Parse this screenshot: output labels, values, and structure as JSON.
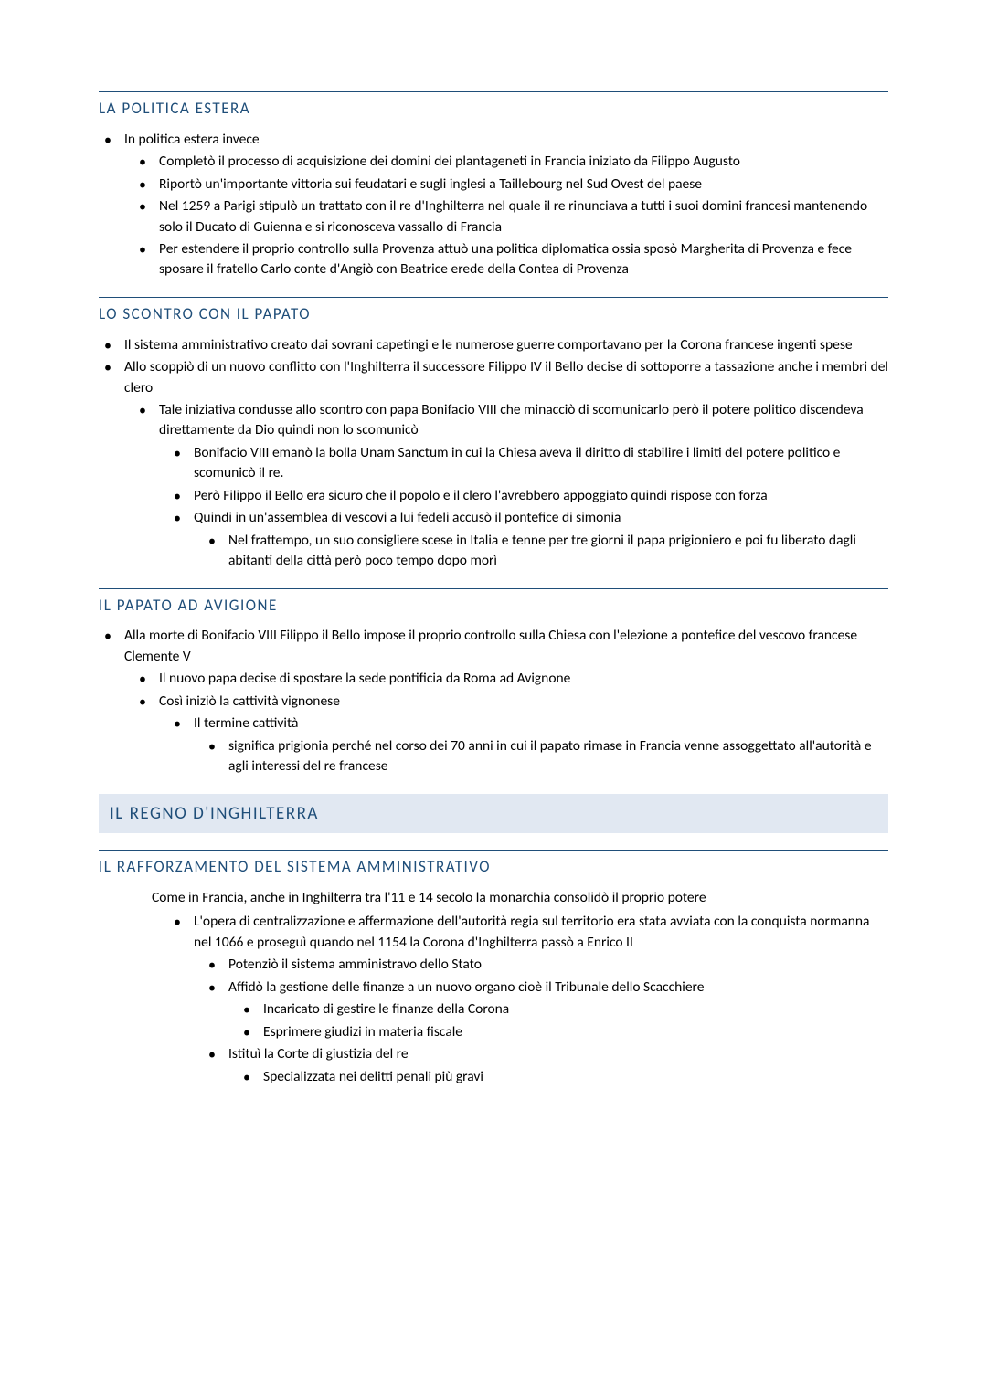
{
  "colors": {
    "heading": "#1f4e79",
    "rule": "#1f4e79",
    "main_bar_bg": "#e1e8f2",
    "text": "#000000",
    "background": "#ffffff"
  },
  "typography": {
    "body_font": "Calibri",
    "body_size_pt": 11,
    "heading_size_pt": 13,
    "main_heading_size_pt": 14,
    "heading_letter_spacing": 1.5
  },
  "sections": [
    {
      "key": "s1",
      "heading": "LA POLITICA ESTERA",
      "items": [
        {
          "key": "s1i0",
          "level": 0,
          "text": "In politica estera invece",
          "justify": false
        },
        {
          "key": "s1i1",
          "level": 1,
          "text": "Completò il processo di acquisizione dei domini dei plantageneti in Francia iniziato da Filippo Augusto",
          "justify": false
        },
        {
          "key": "s1i2",
          "level": 1,
          "text": "Riportò un'importante vittoria sui feudatari e sugli inglesi a Taillebourg nel Sud Ovest del paese",
          "justify": false
        },
        {
          "key": "s1i3",
          "level": 1,
          "text": "Nel 1259 a Parigi stipulò un trattato con il re d'Inghilterra nel quale il re rinunciava a tutti i suoi domini francesi mantenendo solo il Ducato di Guienna e si riconosceva vassallo di Francia",
          "justify": false
        },
        {
          "key": "s1i4",
          "level": 1,
          "text": "Per estendere il proprio controllo sulla Provenza attuò una politica diplomatica ossia sposò Margherita di Provenza e fece sposare il fratello Carlo conte d'Angiò con Beatrice erede della Contea di Provenza",
          "justify": false
        }
      ]
    },
    {
      "key": "s2",
      "heading": "LO SCONTRO CON IL PAPATO",
      "items": [
        {
          "key": "s2i0",
          "level": 0,
          "text": "Il sistema amministrativo creato dai sovrani capetingi e le numerose guerre comportavano per la Corona francese ingenti spese",
          "justify": true
        },
        {
          "key": "s2i1",
          "level": 0,
          "text": "Allo scoppiò di un nuovo conflitto con l'Inghilterra il successore Filippo IV il Bello decise di sottoporre a tassazione anche i membri del clero",
          "justify": true
        },
        {
          "key": "s2i2",
          "level": 1,
          "text": "Tale iniziativa condusse allo scontro con papa Bonifacio VIII che minacciò di scomunicarlo però il potere politico discendeva direttamente da Dio quindi non lo scomunicò",
          "justify": false
        },
        {
          "key": "s2i3",
          "level": 2,
          "text": "Bonifacio VIII emanò la bolla Unam Sanctum in cui la Chiesa aveva il diritto di stabilire i limiti del potere politico e scomunicò il re.",
          "justify": false
        },
        {
          "key": "s2i4",
          "level": 2,
          "text": "Però Filippo il Bello era sicuro che il popolo e il clero l'avrebbero appoggiato quindi rispose con forza",
          "justify": false
        },
        {
          "key": "s2i5",
          "level": 2,
          "text": "Quindi in un'assemblea di vescovi a lui fedeli accusò il pontefice di simonia",
          "justify": false
        },
        {
          "key": "s2i6",
          "level": 3,
          "text": "Nel frattempo, un suo consigliere scese in Italia e tenne per tre giorni il papa prigioniero e poi fu liberato dagli abitanti della città però poco tempo dopo morì",
          "justify": false
        }
      ]
    },
    {
      "key": "s3",
      "heading": "IL PAPATO AD AVIGIONE",
      "items": [
        {
          "key": "s3i0",
          "level": 0,
          "text": "Alla morte di Bonifacio VIII Filippo il Bello impose il proprio controllo sulla Chiesa con l'elezione a pontefice del vescovo francese Clemente V",
          "justify": false
        },
        {
          "key": "s3i1",
          "level": 1,
          "text": "Il nuovo papa decise di spostare la sede pontificia da Roma ad Avignone",
          "justify": false
        },
        {
          "key": "s3i2",
          "level": 1,
          "text": "Così iniziò la cattività vignonese",
          "justify": false
        },
        {
          "key": "s3i3",
          "level": 2,
          "text": "Il termine cattività",
          "justify": false
        },
        {
          "key": "s3i4",
          "level": 3,
          "text": "significa prigionia perché nel corso dei 70 anni in cui il papato rimase in Francia venne assoggettato all'autorità e agli interessi del re francese",
          "justify": false
        }
      ]
    }
  ],
  "main_heading": "IL REGNO D'INGHILTERRA",
  "sections_after": [
    {
      "key": "s4",
      "heading": "IL RAFFORZAMENTO DEL SISTEMA AMMINISTRATIVO",
      "intro": "Come in Francia, anche in Inghilterra tra l'11 e 14 secolo la monarchia consolidò il proprio potere",
      "items": [
        {
          "key": "s4i0",
          "level": 2,
          "text": "L'opera di centralizzazione e affermazione dell'autorità regia sul territorio era stata avviata con la conquista normanna nel 1066 e proseguì quando nel 1154 la Corona d'Inghilterra passò a Enrico II",
          "justify": false
        },
        {
          "key": "s4i1",
          "level": 3,
          "text": "Potenziò il sistema amministravo dello Stato",
          "justify": false
        },
        {
          "key": "s4i2",
          "level": 3,
          "text": "Affidò la gestione delle finanze a un nuovo organo cioè il Tribunale dello Scacchiere",
          "justify": false
        },
        {
          "key": "s4i3",
          "level": 4,
          "text": "Incaricato di gestire le finanze della Corona",
          "justify": false
        },
        {
          "key": "s4i4",
          "level": 4,
          "text": "Esprimere giudizi in materia fiscale",
          "justify": false
        },
        {
          "key": "s4i5",
          "level": 3,
          "text": "Istituì la Corte di giustizia del re",
          "justify": false
        },
        {
          "key": "s4i6",
          "level": 4,
          "text": "Specializzata nei delitti penali più gravi",
          "justify": false
        }
      ]
    }
  ]
}
